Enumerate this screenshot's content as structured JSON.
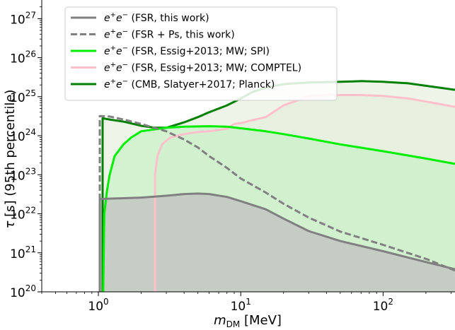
{
  "chart_data": {
    "type": "area",
    "xlabel": "m_DM [MeV]",
    "ylabel": "τ [s] (95th percentile)",
    "x_scale": "log",
    "y_scale": "log",
    "xlim": [
      0.4,
      320
    ],
    "ylim": [
      1e+20,
      3e+27
    ],
    "x_ticks": [
      {
        "value": 1,
        "label_base": "10",
        "label_exp": "0"
      },
      {
        "value": 10,
        "label_base": "10",
        "label_exp": "1"
      },
      {
        "value": 100,
        "label_base": "10",
        "label_exp": "2"
      }
    ],
    "y_ticks": [
      {
        "value": 1e+20,
        "label_base": "10",
        "label_exp": "20"
      },
      {
        "value": 1e+21,
        "label_base": "10",
        "label_exp": "21"
      },
      {
        "value": 1e+22,
        "label_base": "10",
        "label_exp": "22"
      },
      {
        "value": 1e+23,
        "label_base": "10",
        "label_exp": "23"
      },
      {
        "value": 1e+24,
        "label_base": "10",
        "label_exp": "24"
      },
      {
        "value": 1e+25,
        "label_base": "10",
        "label_exp": "25"
      },
      {
        "value": 1e+26,
        "label_base": "10",
        "label_exp": "26"
      },
      {
        "value": 1e+27,
        "label_base": "10",
        "label_exp": "27"
      }
    ],
    "legend": {
      "placement": "top-left"
    },
    "series": [
      {
        "name": "e+e− (FSR, this work)",
        "legend_label": "(FSR, this work)",
        "color": "#808080",
        "style": "solid",
        "filled": true,
        "fill_color": "#c0c0c0",
        "points": [
          [
            1.022,
            1e+20
          ],
          [
            1.022,
            2.4e+22
          ],
          [
            1.5,
            2.5e+22
          ],
          [
            2,
            2.6e+22
          ],
          [
            3,
            2.9e+22
          ],
          [
            4,
            3.2e+22
          ],
          [
            5,
            3.3e+22
          ],
          [
            6,
            3.2e+22
          ],
          [
            8,
            2.7e+22
          ],
          [
            10,
            2.1e+22
          ],
          [
            15,
            1.3e+22
          ],
          [
            20,
            7.5e+21
          ],
          [
            30,
            3.6e+21
          ],
          [
            50,
            2e+21
          ],
          [
            100,
            1.1e+21
          ],
          [
            200,
            5.8e+20
          ],
          [
            320,
            3.8e+20
          ]
        ]
      },
      {
        "name": "e+e− (FSR + Ps, this work)",
        "legend_label": "(FSR + Ps, this work)",
        "color": "#808080",
        "style": "dashed",
        "filled": false,
        "points": [
          [
            1.022,
            1e+20
          ],
          [
            1.022,
            3.2e+24
          ],
          [
            1.2,
            3.1e+24
          ],
          [
            1.5,
            2.6e+24
          ],
          [
            2,
            2e+24
          ],
          [
            3,
            1.3e+24
          ],
          [
            4,
            8e+23
          ],
          [
            5,
            5e+23
          ],
          [
            6,
            3e+23
          ],
          [
            8,
            1.5e+23
          ],
          [
            10,
            8e+22
          ],
          [
            15,
            3.5e+22
          ],
          [
            20,
            1.8e+22
          ],
          [
            30,
            8e+21
          ],
          [
            50,
            3.5e+21
          ],
          [
            100,
            1.6e+21
          ],
          [
            200,
            7e+20
          ],
          [
            320,
            3.5e+20
          ]
        ]
      },
      {
        "name": "e+e− (FSR, Essig+2013; MW; SPI)",
        "legend_label": "(FSR, Essig+2013; MW; SPI)",
        "color": "#00ee00",
        "style": "solid",
        "filled": true,
        "fill_color": "#c8f0c8",
        "points": [
          [
            1.08,
            1e+20
          ],
          [
            1.1,
            1e+22
          ],
          [
            1.15,
            4e+22
          ],
          [
            1.2,
            1e+23
          ],
          [
            1.3,
            3e+23
          ],
          [
            1.5,
            6e+23
          ],
          [
            1.7,
            9e+23
          ],
          [
            2,
            1.3e+24
          ],
          [
            3,
            1.6e+24
          ],
          [
            4,
            1.7e+24
          ],
          [
            6,
            1.75e+24
          ],
          [
            8,
            1.7e+24
          ],
          [
            10,
            1.55e+24
          ],
          [
            15,
            1.3e+24
          ],
          [
            20,
            1.1e+24
          ],
          [
            30,
            8.5e+23
          ],
          [
            50,
            6e+23
          ],
          [
            100,
            4e+23
          ],
          [
            200,
            2.6e+23
          ],
          [
            320,
            1.9e+23
          ]
        ]
      },
      {
        "name": "e+e− (FSR, Essig+2013; MW; COMPTEL)",
        "legend_label": "(FSR, Essig+2013; MW; COMPTEL)",
        "color": "#ffc0cb",
        "style": "solid",
        "filled": true,
        "fill_color": "#e4eedc",
        "points": [
          [
            2.5,
            1e+20
          ],
          [
            2.5,
            1e+23
          ],
          [
            2.6,
            3e+23
          ],
          [
            2.8,
            6e+23
          ],
          [
            3.2,
            9e+23
          ],
          [
            4,
            1.1e+24
          ],
          [
            5,
            1.25e+24
          ],
          [
            6,
            1.3e+24
          ],
          [
            8,
            1.5e+24
          ],
          [
            9,
            2e+24
          ],
          [
            10,
            2.1e+24
          ],
          [
            12,
            2.5e+24
          ],
          [
            15,
            3e+24
          ],
          [
            20,
            6e+24
          ],
          [
            25,
            8e+24
          ],
          [
            30,
            1.05e+25
          ],
          [
            40,
            1.1e+25
          ],
          [
            50,
            1.1e+25
          ],
          [
            70,
            1.1e+25
          ],
          [
            100,
            1.05e+25
          ],
          [
            150,
            9e+24
          ],
          [
            200,
            7.5e+24
          ],
          [
            320,
            5.5e+24
          ]
        ]
      },
      {
        "name": "e+e− (CMB, Slatyer+2017; Planck)",
        "legend_label": "(CMB, Slatyer+2017; Planck)",
        "color": "#008000",
        "style": "solid",
        "filled": true,
        "fill_color": "#e8f2e0",
        "points": [
          [
            1.07,
            1e+20
          ],
          [
            1.07,
            2.8e+24
          ],
          [
            1.2,
            2.6e+24
          ],
          [
            1.5,
            2.3e+24
          ],
          [
            2,
            1.8e+24
          ],
          [
            2.5,
            1.6e+24
          ],
          [
            3,
            1.6e+24
          ],
          [
            4,
            2.2e+24
          ],
          [
            5,
            3e+24
          ],
          [
            6,
            4e+24
          ],
          [
            8,
            6e+24
          ],
          [
            10,
            9e+24
          ],
          [
            12,
            1.3e+25
          ],
          [
            15,
            1.7e+25
          ],
          [
            20,
            2.1e+25
          ],
          [
            30,
            2.3e+25
          ],
          [
            50,
            2.4e+25
          ],
          [
            70,
            2.5e+25
          ],
          [
            100,
            2.4e+25
          ],
          [
            150,
            2.2e+25
          ],
          [
            200,
            1.9e+25
          ],
          [
            320,
            1.5e+25
          ]
        ]
      }
    ]
  }
}
